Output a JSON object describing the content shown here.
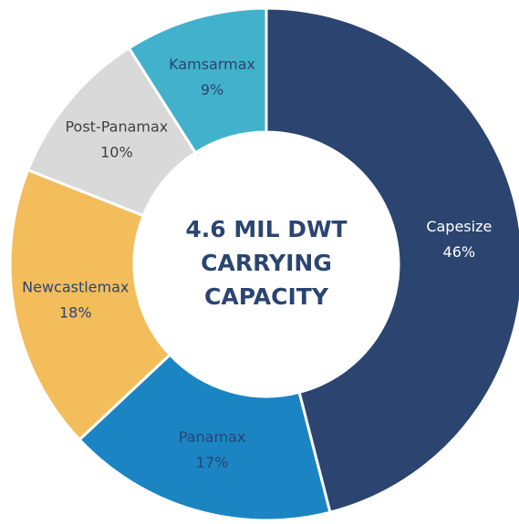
{
  "chart_data": {
    "type": "donut",
    "center_label": [
      "4.6 MIL DWT",
      "CARRYING",
      "CAPACITY"
    ],
    "categories": [
      "Capesize",
      "Panamax",
      "Newcastlemax",
      "Post-Panamax",
      "Kamsarmax"
    ],
    "values": [
      46,
      17,
      18,
      10,
      9
    ],
    "value_labels": [
      "46%",
      "17%",
      "18%",
      "10%",
      "9%"
    ],
    "colors": [
      "#2b4570",
      "#1b84c3",
      "#f3bd5b",
      "#d9d9d9",
      "#42b1cc"
    ],
    "label_colors": [
      "#ffffff",
      "#2b4570",
      "#2b4570",
      "#404040",
      "#2b4570"
    ],
    "center_color": "#2b4570"
  }
}
